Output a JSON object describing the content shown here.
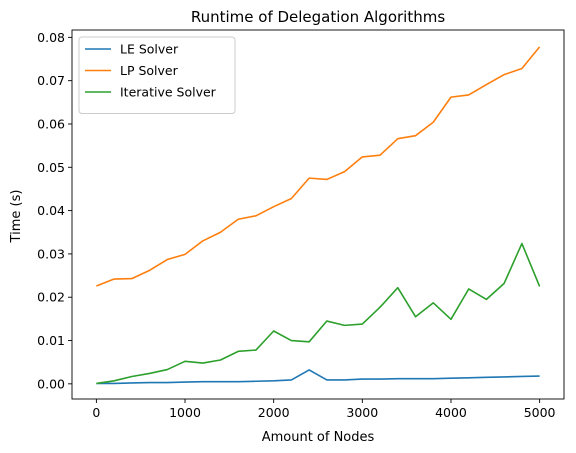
{
  "chart_data": {
    "type": "line",
    "title": "Runtime of Delegation Algorithms",
    "xlabel": "Amount of Nodes",
    "ylabel": "Time (s)",
    "xlim": [
      -275,
      5275
    ],
    "ylim": [
      -0.0035,
      0.0817
    ],
    "xticks": [
      0,
      1000,
      2000,
      3000,
      4000,
      5000
    ],
    "yticks": [
      0.0,
      0.01,
      0.02,
      0.03,
      0.04,
      0.05,
      0.06,
      0.07,
      0.08
    ],
    "ytick_labels": [
      "0.00",
      "0.01",
      "0.02",
      "0.03",
      "0.04",
      "0.05",
      "0.06",
      "0.07",
      "0.08"
    ],
    "grid": false,
    "legend_position": "top-left",
    "x": [
      0,
      200,
      400,
      600,
      800,
      1000,
      1200,
      1400,
      1600,
      1800,
      2000,
      2200,
      2400,
      2600,
      2800,
      3000,
      3200,
      3400,
      3600,
      3800,
      4000,
      4200,
      4400,
      4600,
      4800,
      5000
    ],
    "series": [
      {
        "name": "LE Solver",
        "color": "#1f77b4",
        "values": [
          0.0001,
          0.0001,
          0.0002,
          0.0003,
          0.0003,
          0.0004,
          0.0005,
          0.0005,
          0.0005,
          0.0006,
          0.0007,
          0.0009,
          0.0032,
          0.0009,
          0.0009,
          0.0011,
          0.0011,
          0.0012,
          0.0012,
          0.0012,
          0.0013,
          0.0014,
          0.0015,
          0.0016,
          0.0017,
          0.0018
        ]
      },
      {
        "name": "LP Solver",
        "color": "#ff7f0e",
        "values": [
          0.0226,
          0.0242,
          0.0243,
          0.0262,
          0.0287,
          0.0299,
          0.033,
          0.035,
          0.038,
          0.0388,
          0.0409,
          0.0428,
          0.0475,
          0.0472,
          0.049,
          0.0524,
          0.0528,
          0.0566,
          0.0573,
          0.0604,
          0.0662,
          0.0667,
          0.0691,
          0.0714,
          0.0728,
          0.0778
        ]
      },
      {
        "name": "Iterative Solver",
        "color": "#2ca02c",
        "values": [
          0.0001,
          0.0007,
          0.0017,
          0.0024,
          0.0033,
          0.0052,
          0.0048,
          0.0055,
          0.0075,
          0.0078,
          0.0122,
          0.01,
          0.0097,
          0.0145,
          0.0135,
          0.0138,
          0.0177,
          0.0222,
          0.0155,
          0.0187,
          0.0149,
          0.0219,
          0.0195,
          0.0232,
          0.0324,
          0.0225
        ]
      }
    ]
  }
}
